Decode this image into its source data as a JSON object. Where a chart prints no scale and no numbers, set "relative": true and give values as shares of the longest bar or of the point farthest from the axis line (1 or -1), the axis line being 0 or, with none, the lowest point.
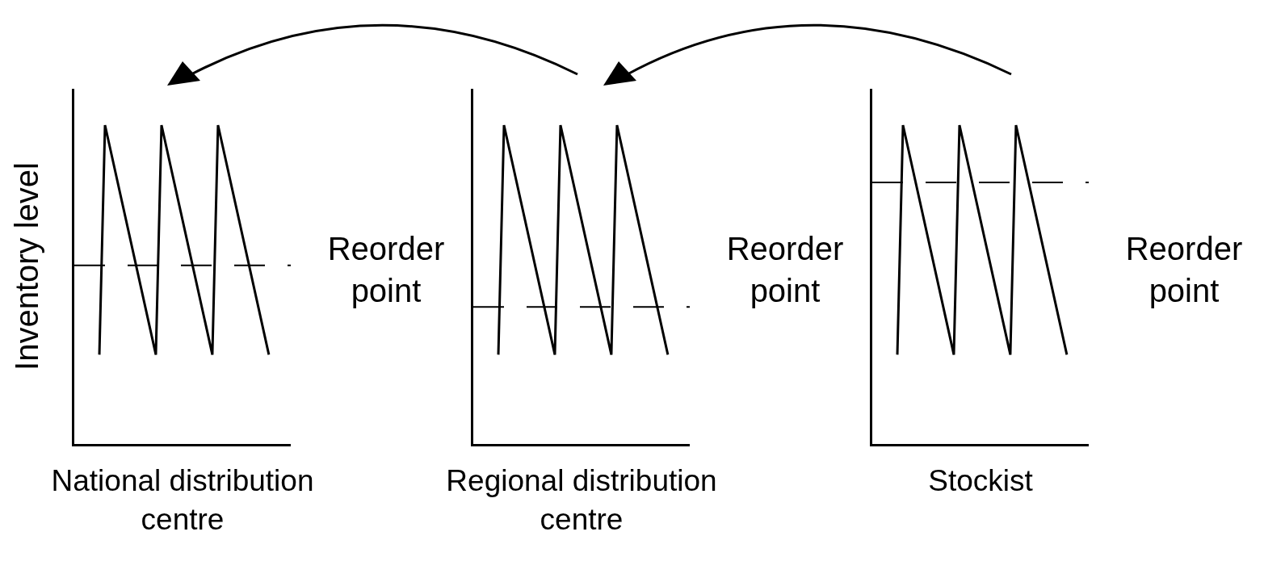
{
  "chart_data": [
    {
      "type": "line",
      "relative": true,
      "ylabel": "Inventory level",
      "xlabel": "National distribution centre",
      "categories": [
        null,
        null,
        null,
        null,
        null,
        null,
        null,
        null,
        null,
        null,
        null,
        null,
        null,
        null,
        null,
        null,
        null,
        null,
        null,
        null,
        null,
        null,
        null,
        null,
        null,
        null,
        null,
        null,
        null,
        null,
        null
      ],
      "legend": false,
      "marker": "none",
      "line_style": "solid",
      "series": [
        {
          "color": "#000000",
          "values": [
            0.28,
            1,
            null,
            null,
            null,
            null,
            null,
            null,
            null,
            null,
            0.28,
            1,
            null,
            null,
            null,
            null,
            null,
            null,
            null,
            null,
            0.28,
            1,
            null,
            null,
            null,
            null,
            null,
            null,
            null,
            null,
            0.28
          ]
        }
      ],
      "ref_lines": [
        {
          "axis": "y",
          "value": 0.56,
          "label": "Reorder point",
          "line_style": "dashed",
          "color": "#000000"
        }
      ]
    },
    {
      "type": "line",
      "relative": true,
      "xlabel": "Regional distribution centre",
      "categories": [
        null,
        null,
        null,
        null,
        null,
        null,
        null,
        null,
        null,
        null,
        null,
        null,
        null,
        null,
        null,
        null,
        null,
        null,
        null,
        null,
        null,
        null,
        null,
        null,
        null,
        null,
        null,
        null,
        null,
        null,
        null
      ],
      "legend": false,
      "marker": "none",
      "line_style": "solid",
      "series": [
        {
          "color": "#000000",
          "values": [
            0.28,
            1,
            null,
            null,
            null,
            null,
            null,
            null,
            null,
            null,
            0.28,
            1,
            null,
            null,
            null,
            null,
            null,
            null,
            null,
            null,
            0.28,
            1,
            null,
            null,
            null,
            null,
            null,
            null,
            null,
            null,
            0.28
          ]
        }
      ],
      "ref_lines": [
        {
          "axis": "y",
          "value": 0.43,
          "label": "Reorder point",
          "line_style": "dashed",
          "color": "#000000"
        }
      ]
    },
    {
      "type": "line",
      "relative": true,
      "xlabel": "Stockist",
      "categories": [
        null,
        null,
        null,
        null,
        null,
        null,
        null,
        null,
        null,
        null,
        null,
        null,
        null,
        null,
        null,
        null,
        null,
        null,
        null,
        null,
        null,
        null,
        null,
        null,
        null,
        null,
        null,
        null,
        null,
        null,
        null
      ],
      "legend": false,
      "marker": "none",
      "line_style": "solid",
      "series": [
        {
          "color": "#000000",
          "values": [
            0.28,
            1,
            null,
            null,
            null,
            null,
            null,
            null,
            null,
            null,
            0.28,
            1,
            null,
            null,
            null,
            null,
            null,
            null,
            null,
            null,
            0.28,
            1,
            null,
            null,
            null,
            null,
            null,
            null,
            null,
            null,
            0.28
          ]
        }
      ],
      "ref_lines": [
        {
          "axis": "y",
          "value": 0.82,
          "label": "Reorder point",
          "line_style": "dashed",
          "color": "#000000"
        }
      ]
    }
  ]
}
